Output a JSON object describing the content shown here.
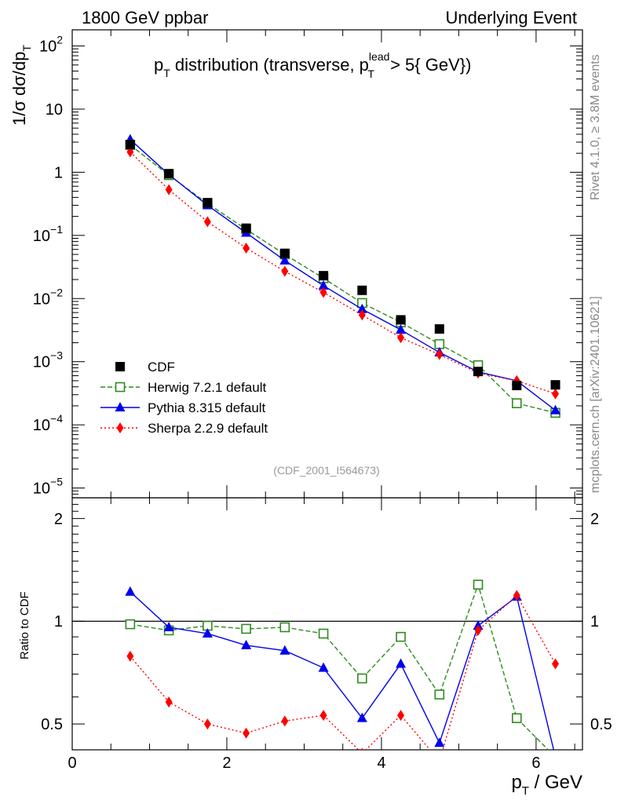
{
  "header": {
    "left": "1800 GeV ppbar",
    "right": "Underlying Event"
  },
  "side_labels": {
    "version": "Rivet 4.1.0, ≥ 3.8M events",
    "source": "mcplots.cern.ch [arXiv:2401.10621]"
  },
  "watermark": "(CDF_2001_I564673)",
  "colors": {
    "data": "#000000",
    "herwig": "#2e8b1e",
    "pythia": "#0000ee",
    "sherpa": "#ff0000"
  },
  "chart_data": [
    {
      "type": "scatter",
      "panel": "main",
      "title": {
        "p": "p",
        "sub": "T",
        "text": " distribution (transverse, p",
        "sup2": "lead",
        "sub2": "T",
        "tail": " > 5{ GeV})"
      },
      "ylabel": {
        "pre": "1/σ  dσ/dp",
        "sub": "T"
      },
      "yscale": "log",
      "ylim": [
        7e-06,
        180
      ],
      "xlim": [
        0,
        6.6
      ],
      "y_ticks": [
        {
          "value": 100,
          "base": "10",
          "exp": "2"
        },
        {
          "value": 10,
          "base": "10",
          "exp": ""
        },
        {
          "value": 1,
          "base": "1",
          "exp": ""
        },
        {
          "value": 0.1,
          "base": "10",
          "exp": "−1"
        },
        {
          "value": 0.01,
          "base": "10",
          "exp": "−2"
        },
        {
          "value": 0.001,
          "base": "10",
          "exp": "−3"
        },
        {
          "value": 0.0001,
          "base": "10",
          "exp": "−4"
        },
        {
          "value": 1e-05,
          "base": "10",
          "exp": "−5"
        }
      ],
      "x": [
        0.75,
        1.25,
        1.75,
        2.25,
        2.75,
        3.25,
        3.75,
        4.25,
        4.75,
        5.25,
        5.75,
        6.25
      ],
      "series": [
        {
          "name": "CDF",
          "key": "data",
          "marker": "square",
          "values": [
            2.75,
            0.95,
            0.33,
            0.13,
            0.052,
            0.023,
            0.0135,
            0.0046,
            0.0033,
            0.0007,
            0.00042,
            0.00043
          ]
        },
        {
          "name": "Herwig 7.2.1 default",
          "key": "herwig",
          "marker": "open-square",
          "dash": "6,3",
          "values": [
            2.7,
            0.9,
            0.32,
            0.125,
            0.05,
            0.021,
            0.0085,
            0.0042,
            0.0019,
            0.00088,
            0.00022,
            0.000155
          ]
        },
        {
          "name": "Pythia 8.315 default",
          "key": "pythia",
          "marker": "triangle",
          "dash": "",
          "values": [
            3.3,
            0.92,
            0.3,
            0.11,
            0.04,
            0.016,
            0.0068,
            0.0032,
            0.0014,
            0.00069,
            0.0005,
            0.00017
          ]
        },
        {
          "name": "Sherpa 2.2.9 default",
          "key": "sherpa",
          "marker": "diamond",
          "dash": "2,3",
          "values": [
            2.1,
            0.53,
            0.165,
            0.063,
            0.027,
            0.0125,
            0.0055,
            0.0024,
            0.0013,
            0.00066,
            0.0005,
            0.00031
          ]
        }
      ]
    },
    {
      "type": "line",
      "panel": "ratio",
      "ylabel": "Ratio to CDF",
      "yscale": "log",
      "ylim": [
        0.42,
        2.3
      ],
      "xlim": [
        0,
        6.6
      ],
      "reference": 1,
      "y_ticks": [
        {
          "value": 2,
          "label": "2"
        },
        {
          "value": 1,
          "label": "1"
        },
        {
          "value": 0.5,
          "label": "0.5"
        }
      ],
      "x_ticks": [
        {
          "value": 0,
          "label": "0"
        },
        {
          "value": 2,
          "label": "2"
        },
        {
          "value": 4,
          "label": "4"
        },
        {
          "value": 6,
          "label": "6"
        }
      ],
      "xlabel": {
        "p": "p",
        "sub": "T",
        "tail": " / GeV"
      },
      "x": [
        0.75,
        1.25,
        1.75,
        2.25,
        2.75,
        3.25,
        3.75,
        4.25,
        4.75,
        5.25,
        5.75,
        6.25
      ],
      "series": [
        {
          "name": "Herwig 7.2.1 default",
          "key": "herwig",
          "marker": "open-square",
          "dash": "6,3",
          "values": [
            0.98,
            0.94,
            0.97,
            0.95,
            0.96,
            0.92,
            0.68,
            0.9,
            0.61,
            1.28,
            0.52,
            0.4
          ]
        },
        {
          "name": "Pythia 8.315 default",
          "key": "pythia",
          "marker": "triangle",
          "dash": "",
          "values": [
            1.22,
            0.96,
            0.92,
            0.85,
            0.82,
            0.73,
            0.52,
            0.75,
            0.44,
            0.97,
            1.18,
            0.4
          ]
        },
        {
          "name": "Sherpa 2.2.9 default",
          "key": "sherpa",
          "marker": "diamond",
          "dash": "2,3",
          "values": [
            0.79,
            0.58,
            0.5,
            0.47,
            0.51,
            0.53,
            0.41,
            0.53,
            0.39,
            0.94,
            1.19,
            0.75
          ]
        }
      ]
    }
  ]
}
